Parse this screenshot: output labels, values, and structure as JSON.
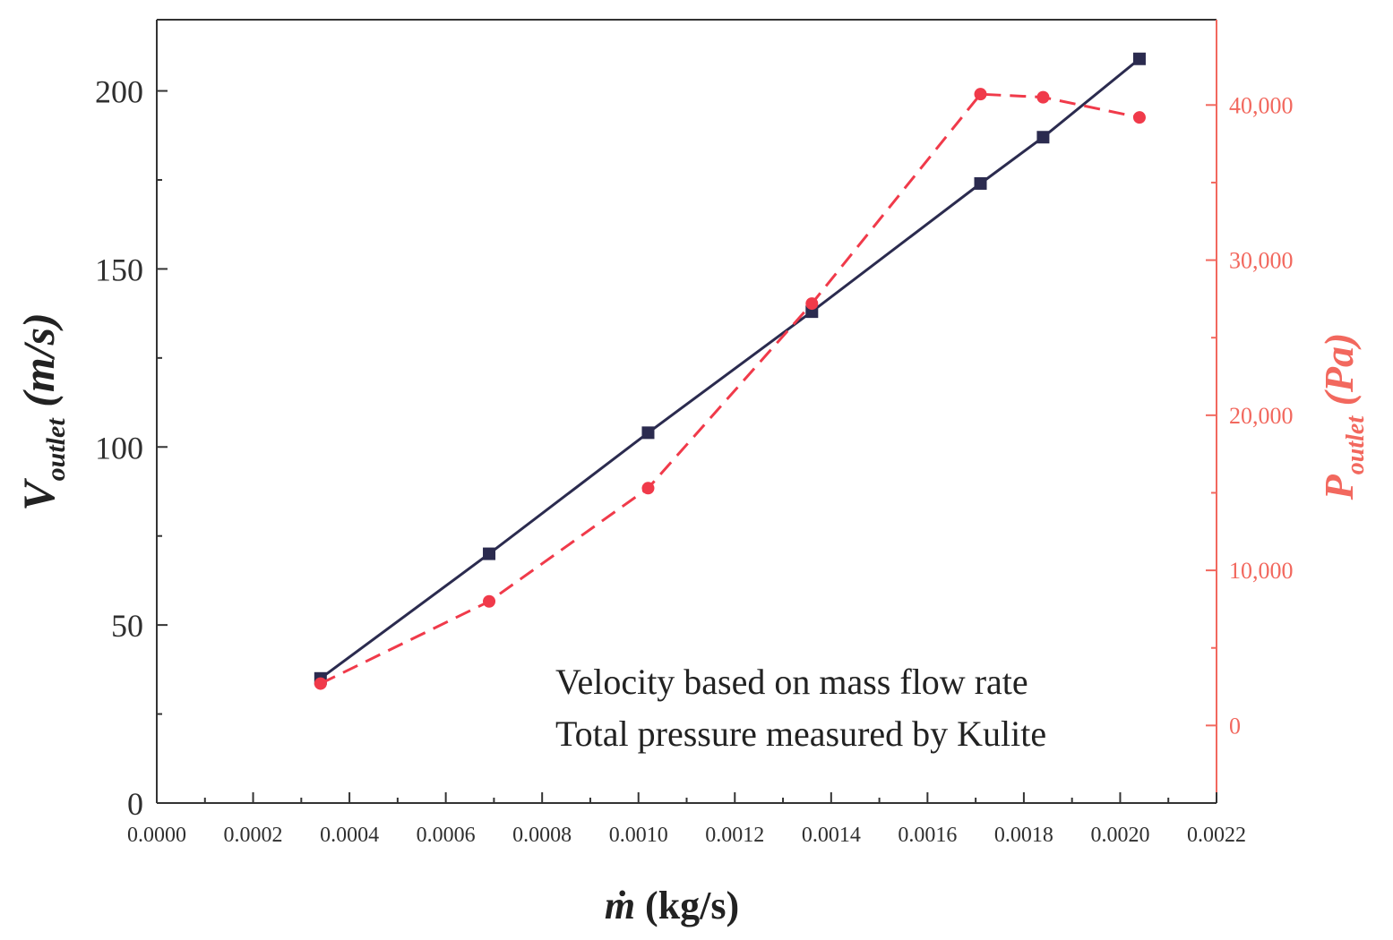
{
  "chart_data": {
    "type": "line",
    "x": [
      0.00034,
      0.00069,
      0.00102,
      0.00136,
      0.00171,
      0.00184,
      0.00204
    ],
    "xlim": [
      0.0,
      0.0022
    ],
    "x_ticks": [
      0.0,
      0.0002,
      0.0004,
      0.0006,
      0.0008,
      0.001,
      0.0012,
      0.0014,
      0.0016,
      0.0018,
      0.002,
      0.0022
    ],
    "x_tick_labels": [
      "0.0000",
      "0.0002",
      "0.0004",
      "0.0006",
      "0.0008",
      "0.0010",
      "0.0012",
      "0.0014",
      "0.0016",
      "0.0018",
      "0.0020",
      "0.0022"
    ],
    "xlabel": {
      "symbol": "ṁ",
      "unit": " (kg/s)"
    },
    "y_left": {
      "lim": [
        0,
        220
      ],
      "ticks": [
        0,
        50,
        100,
        150,
        200
      ],
      "tick_labels": [
        "0",
        "50",
        "100",
        "150",
        "200"
      ],
      "label": {
        "main": "V",
        "sub": "outlet",
        "unit": " (m/s)"
      },
      "color": "#2b2b4f"
    },
    "y_right": {
      "lim": [
        -5000,
        45500
      ],
      "ticks": [
        0,
        10000,
        20000,
        30000,
        40000
      ],
      "tick_labels": [
        "0",
        "10,000",
        "20,000",
        "30,000",
        "40,000"
      ],
      "label": {
        "main": "P",
        "sub": "outlet",
        "unit": " (Pa)"
      },
      "color": "#f2685e"
    },
    "series": [
      {
        "name": "Velocity based on mass flow rate",
        "axis": "left",
        "values": [
          35,
          70,
          104,
          138,
          174,
          187,
          209
        ],
        "color": "#2b2b4f",
        "style": "solid",
        "marker": "square"
      },
      {
        "name": "Total pressure measured by Kulite",
        "axis": "right",
        "values": [
          2700,
          8000,
          15300,
          27200,
          40700,
          40500,
          39200
        ],
        "color": "#f03a4a",
        "style": "dashed",
        "marker": "circle"
      }
    ],
    "legend": {
      "position": "bottom-right"
    },
    "grid": false
  }
}
